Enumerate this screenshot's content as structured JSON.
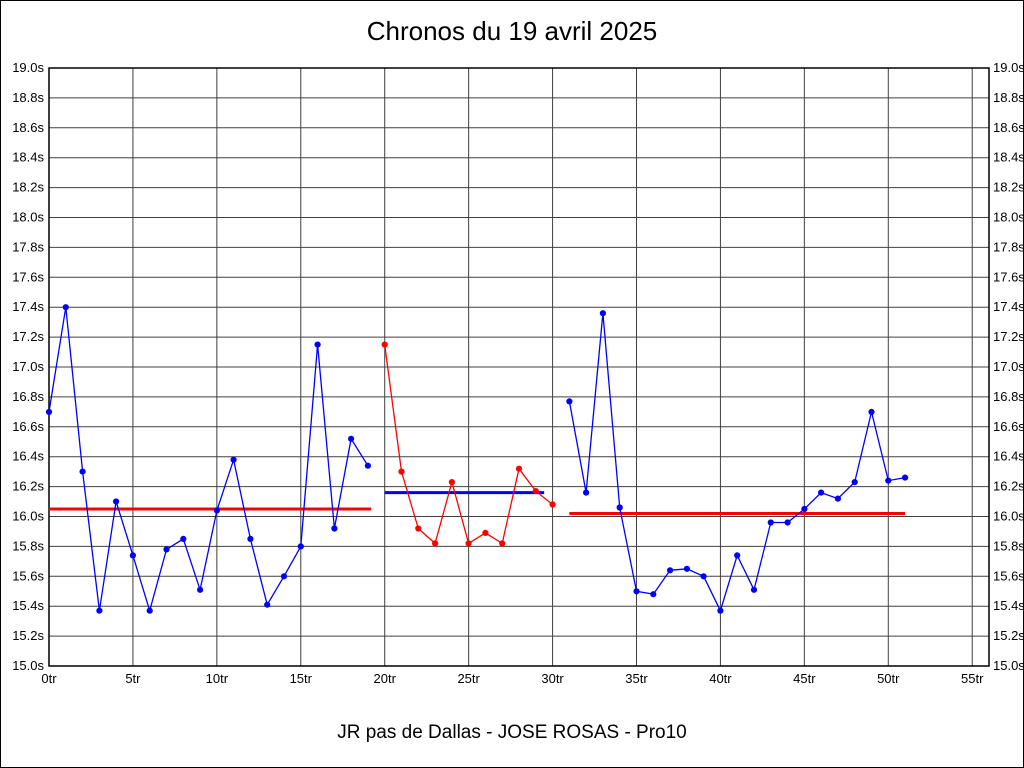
{
  "chart_data": {
    "type": "line",
    "title": "Chronos du 19 avril 2025",
    "caption": "JR pas de Dallas - JOSE ROSAS - Pro10",
    "x_unit": "tr",
    "y_unit": "s",
    "xlim": [
      0,
      56
    ],
    "ylim": [
      15.0,
      19.0
    ],
    "y_tick_step": 0.2,
    "x_tick_step": 5,
    "grid": true,
    "x_ticks": [
      "0tr",
      "5tr",
      "10tr",
      "15tr",
      "20tr",
      "25tr",
      "30tr",
      "35tr",
      "40tr",
      "45tr",
      "50tr",
      "55tr"
    ],
    "y_ticks": [
      "19.0s",
      "18.8s",
      "18.6s",
      "18.4s",
      "18.2s",
      "18.0s",
      "17.8s",
      "17.6s",
      "17.4s",
      "17.2s",
      "17.0s",
      "16.8s",
      "16.6s",
      "16.4s",
      "16.2s",
      "16.0s",
      "15.8s",
      "15.6s",
      "15.4s",
      "15.2s",
      "15.0s"
    ],
    "series": [
      {
        "name": "laps-segment-1",
        "color": "#0000ff",
        "x_start": 0,
        "values": [
          16.7,
          17.4,
          16.3,
          15.37,
          16.1,
          15.74,
          15.37,
          15.78,
          15.85,
          15.51,
          16.04,
          16.38,
          15.85,
          15.41,
          15.6,
          15.8,
          17.15,
          15.92,
          16.52,
          16.34
        ]
      },
      {
        "name": "laps-segment-2",
        "color": "#ff0000",
        "x_start": 20,
        "values": [
          17.15,
          16.3,
          15.92,
          15.82,
          16.23,
          15.82,
          15.89,
          15.82,
          16.32,
          16.17,
          16.08
        ]
      },
      {
        "name": "laps-segment-3",
        "color": "#0000ff",
        "x_start": 31,
        "values": [
          16.77,
          16.16,
          17.36,
          16.06,
          15.5,
          15.48,
          15.64,
          15.65,
          15.6,
          15.37,
          15.74,
          15.51,
          15.96,
          15.96,
          16.05,
          16.16,
          16.12,
          16.23,
          16.7,
          16.24,
          16.26
        ]
      }
    ],
    "reference_lines": [
      {
        "name": "mean-segment-1",
        "color": "#ff0000",
        "y": 16.05,
        "x1": 0,
        "x2": 19.2
      },
      {
        "name": "mean-segment-2",
        "color": "#0000ff",
        "y": 16.16,
        "x1": 20,
        "x2": 29.5
      },
      {
        "name": "mean-segment-3",
        "color": "#ff0000",
        "y": 16.02,
        "x1": 31,
        "x2": 51
      }
    ],
    "colors": {
      "grid": "#404040",
      "axis_border": "#000000",
      "series_blue": "#0000ff",
      "series_red": "#ff0000",
      "background": "#ffffff",
      "text": "#000000"
    }
  }
}
